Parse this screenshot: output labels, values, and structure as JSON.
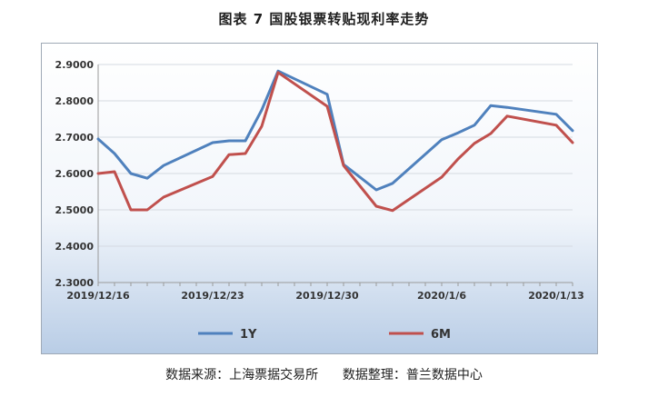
{
  "title": "图表 7  国股银票转贴现利率走势",
  "source": "数据来源：上海票据交易所      数据整理：普兰数据中心",
  "chart_data": {
    "type": "line",
    "title": "图表 7  国股银票转贴现利率走势",
    "x": [
      "2019/12/16",
      "2019/12/17",
      "2019/12/18",
      "2019/12/19",
      "2019/12/20",
      "2019/12/23",
      "2019/12/24",
      "2019/12/25",
      "2019/12/26",
      "2019/12/27",
      "2019/12/30",
      "2019/12/31",
      "2020/1/2",
      "2020/1/3",
      "2020/1/6",
      "2020/1/7",
      "2020/1/8",
      "2020/1/9",
      "2020/1/10",
      "2020/1/13",
      "2020/1/14"
    ],
    "x_positions": [
      0,
      1,
      2,
      3,
      4,
      7,
      8,
      9,
      10,
      11,
      14,
      15,
      17,
      18,
      21,
      22,
      23,
      24,
      25,
      28,
      29
    ],
    "tick_labels": [
      "2019/12/16",
      "2019/12/23",
      "2019/12/30",
      "2020/1/6",
      "2020/1/13"
    ],
    "tick_positions": [
      0,
      7,
      14,
      21,
      28
    ],
    "y_ticks": [
      "2.3000",
      "2.4000",
      "2.5000",
      "2.6000",
      "2.7000",
      "2.8000",
      "2.9000"
    ],
    "ylim": [
      2.3,
      2.9
    ],
    "series": [
      {
        "name": "1Y",
        "color": "#4f81bd",
        "values": [
          2.695,
          2.655,
          2.6,
          2.587,
          2.622,
          2.685,
          2.69,
          2.69,
          2.775,
          2.882,
          2.818,
          2.625,
          2.555,
          2.573,
          2.693,
          2.712,
          2.733,
          2.787,
          2.782,
          2.763,
          2.718
        ]
      },
      {
        "name": "6M",
        "color": "#c0504d",
        "values": [
          2.6,
          2.605,
          2.5,
          2.5,
          2.535,
          2.592,
          2.652,
          2.655,
          2.73,
          2.878,
          2.785,
          2.622,
          2.51,
          2.498,
          2.59,
          2.64,
          2.683,
          2.71,
          2.758,
          2.733,
          2.685
        ]
      }
    ],
    "legend_position": "bottom",
    "grid": true
  }
}
